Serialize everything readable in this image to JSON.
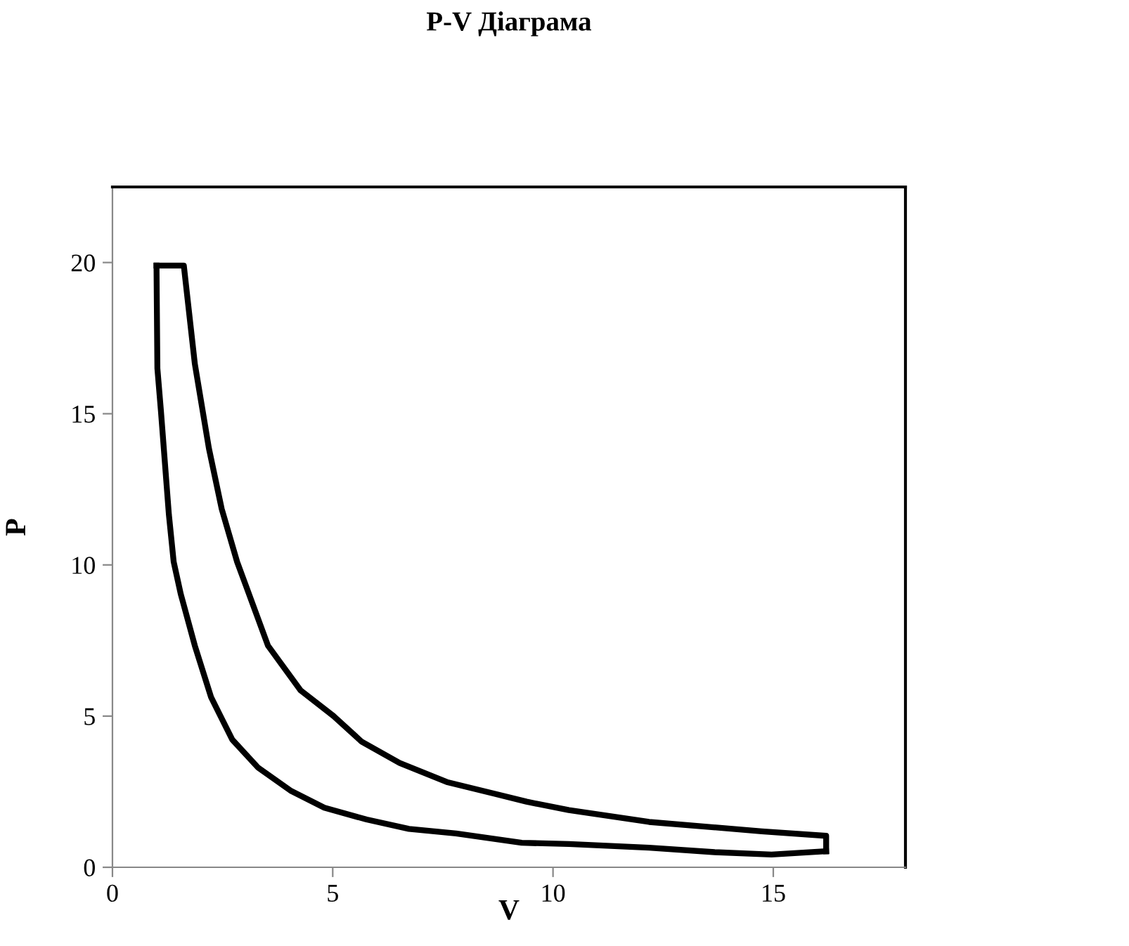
{
  "chart_data": {
    "type": "line",
    "title": "P-V Діаграма",
    "xlabel": "V",
    "ylabel": "P",
    "xlim": [
      0,
      18
    ],
    "xticks": [
      0,
      5,
      10,
      15
    ],
    "ylim": [
      0,
      22.5
    ],
    "yticks": [
      0,
      5,
      10,
      15,
      20
    ],
    "grid": false,
    "marker": "none",
    "line_style": "solid",
    "series": [
      {
        "color": "#000000",
        "x": [
          1.0,
          1.62,
          1.87,
          2.19,
          2.48,
          2.83,
          3.04,
          3.53,
          4.27,
          5.02,
          5.66,
          6.52,
          7.59,
          8.65,
          9.4,
          10.36,
          12.18,
          14.74,
          16.2,
          16.2
        ],
        "values": [
          19.9,
          19.9,
          16.65,
          13.85,
          11.85,
          10.1,
          9.27,
          7.33,
          5.85,
          5.0,
          4.15,
          3.45,
          2.82,
          2.44,
          2.17,
          1.89,
          1.5,
          1.19,
          1.04,
          0.53
        ]
      },
      {
        "color": "#000000",
        "x": [
          16.2,
          14.96,
          13.67,
          12.18,
          10.36,
          9.29,
          7.8,
          6.73,
          5.77,
          4.81,
          4.06,
          3.31,
          2.72,
          2.24,
          1.87,
          1.55,
          1.39,
          1.28,
          1.1,
          1.02,
          1.0
        ],
        "values": [
          0.53,
          0.42,
          0.5,
          0.65,
          0.77,
          0.81,
          1.12,
          1.27,
          1.58,
          1.97,
          2.52,
          3.29,
          4.22,
          5.62,
          7.33,
          9.04,
          10.1,
          11.68,
          15.1,
          16.5,
          19.9
        ]
      }
    ]
  }
}
